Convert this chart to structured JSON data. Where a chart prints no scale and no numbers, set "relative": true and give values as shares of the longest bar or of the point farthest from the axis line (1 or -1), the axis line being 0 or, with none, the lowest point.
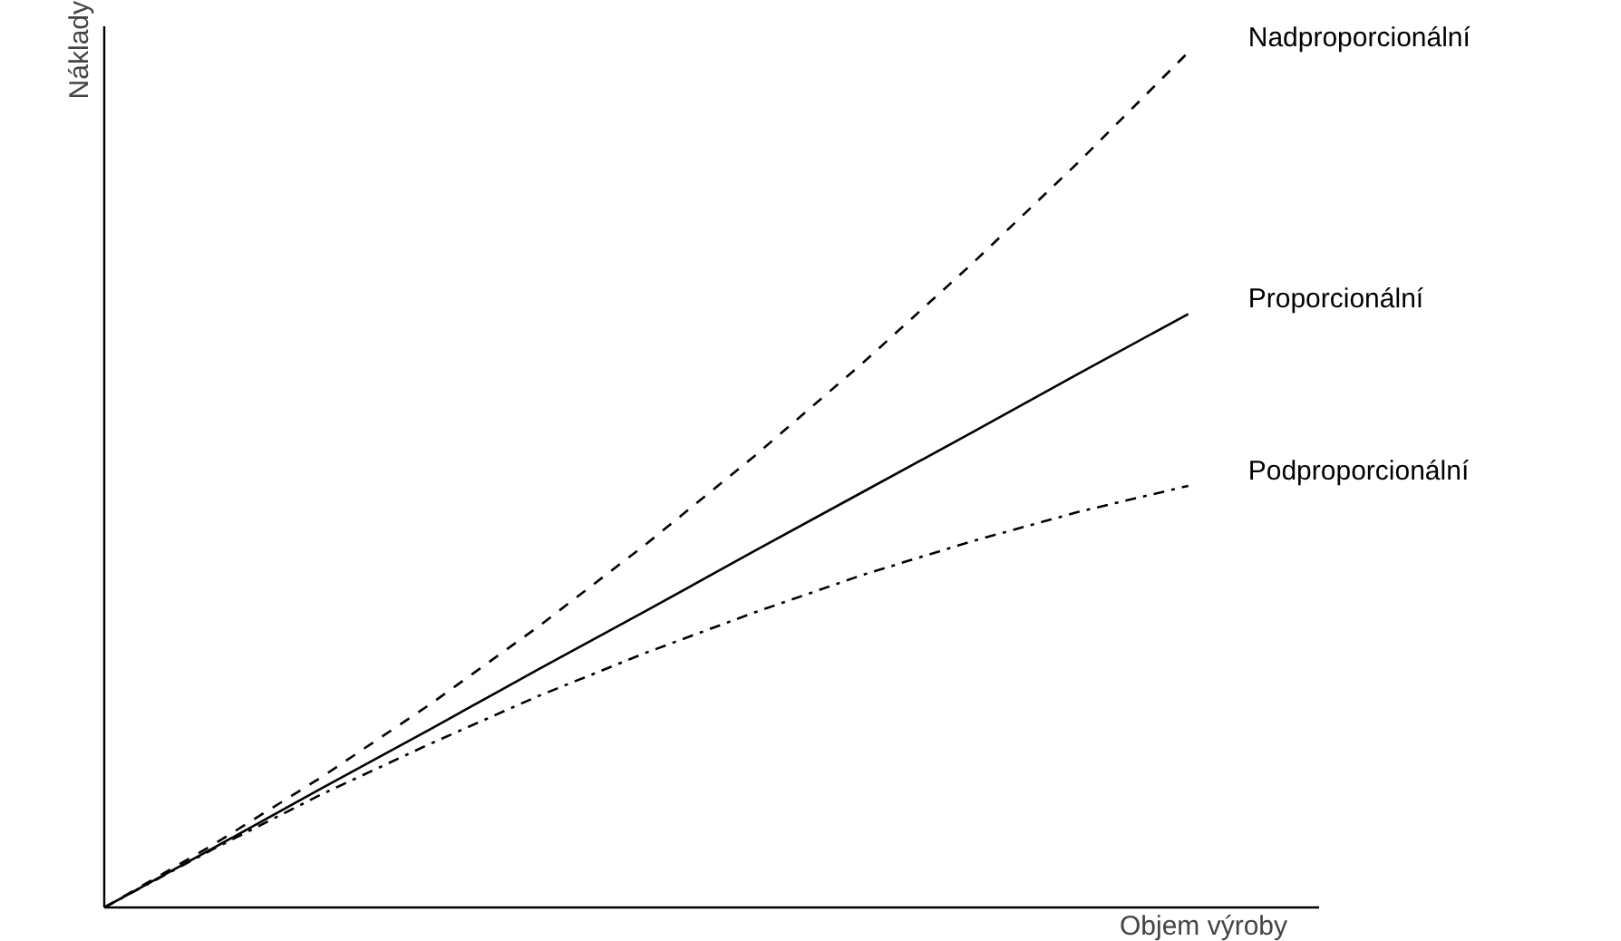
{
  "chart_data": {
    "type": "line",
    "relative": true,
    "xlabel": "Objem výroby",
    "ylabel": "Náklady",
    "categories": [
      null,
      null,
      null,
      null,
      null,
      null,
      null,
      null,
      null,
      null,
      null
    ],
    "marker": "none",
    "series": [
      {
        "name": "Nadproporcionální",
        "color": "#000000",
        "line_style": "dashed",
        "values": [
          0,
          0.073,
          0.152,
          0.237,
          0.328,
          0.425,
          0.528,
          0.637,
          0.752,
          0.873,
          1
        ]
      },
      {
        "name": "Proporcionální",
        "color": "#000000",
        "line_style": "solid",
        "values": [
          0,
          0.069,
          0.139,
          0.208,
          0.278,
          0.347,
          0.417,
          0.486,
          0.555,
          0.625,
          0.694
        ]
      },
      {
        "name": "Podproporcionální",
        "color": "#000000",
        "line_style": "dashdot",
        "values": [
          0,
          0.068,
          0.132,
          0.191,
          0.247,
          0.298,
          0.345,
          0.389,
          0.428,
          0.463,
          0.493
        ]
      }
    ]
  }
}
